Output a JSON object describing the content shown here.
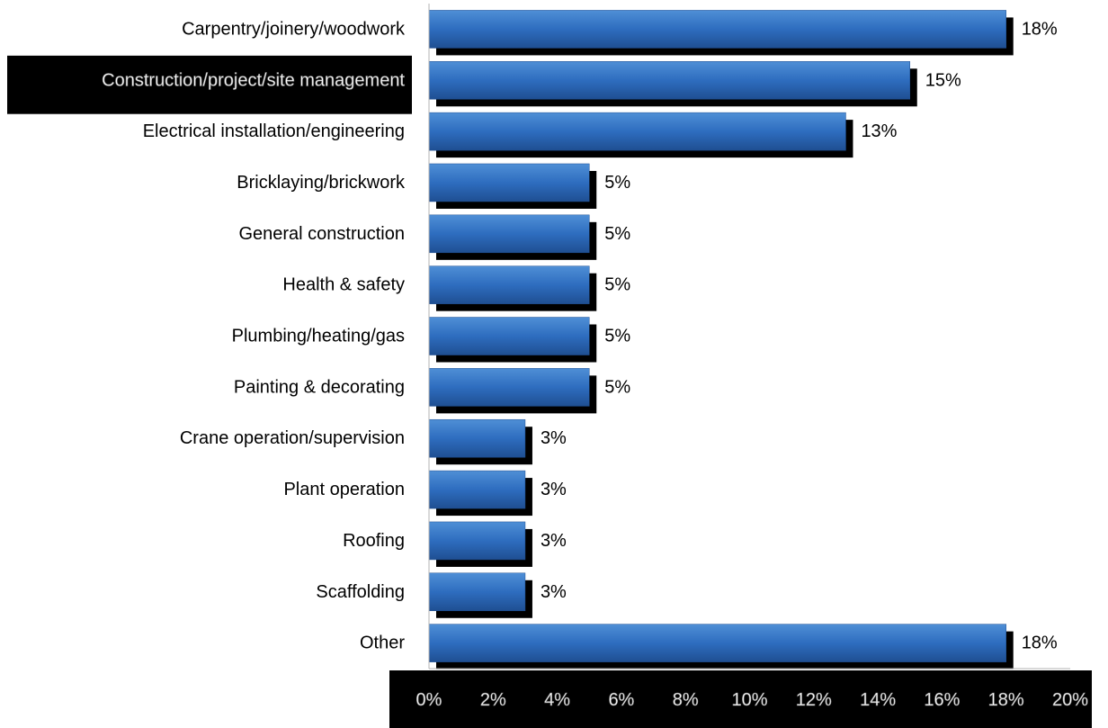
{
  "chart_data": {
    "type": "bar",
    "orientation": "horizontal",
    "categories": [
      "Carpentry/joinery/woodwork",
      "Construction/project/site management",
      "Electrical installation/engineering",
      "Bricklaying/brickwork",
      "General construction",
      "Health & safety",
      "Plumbing/heating/gas",
      "Painting & decorating",
      "Crane operation/supervision",
      "Plant operation",
      "Roofing",
      "Scaffolding",
      "Other"
    ],
    "values": [
      18,
      15,
      13,
      5,
      5,
      5,
      5,
      5,
      3,
      3,
      3,
      3,
      18
    ],
    "data_labels": [
      "18%",
      "15%",
      "13%",
      "5%",
      "5%",
      "5%",
      "5%",
      "5%",
      "3%",
      "3%",
      "3%",
      "3%",
      "18%"
    ],
    "highlighted_category": "Construction/project/site management",
    "x_ticks": [
      "0%",
      "2%",
      "4%",
      "6%",
      "8%",
      "10%",
      "12%",
      "14%",
      "16%",
      "18%",
      "20%"
    ],
    "xlim": [
      0,
      20
    ],
    "unit": "%",
    "grid": false,
    "legend": "none",
    "title": "",
    "xlabel": "",
    "ylabel": "",
    "colors": {
      "bar": "#2e6dbf",
      "bar_light": "#4f8fd6",
      "bar_dark": "#1f4f92",
      "shadow": "#000000",
      "axis": "#b3b3b3",
      "tick_band": "#000000",
      "highlight_band": "#000000"
    }
  }
}
